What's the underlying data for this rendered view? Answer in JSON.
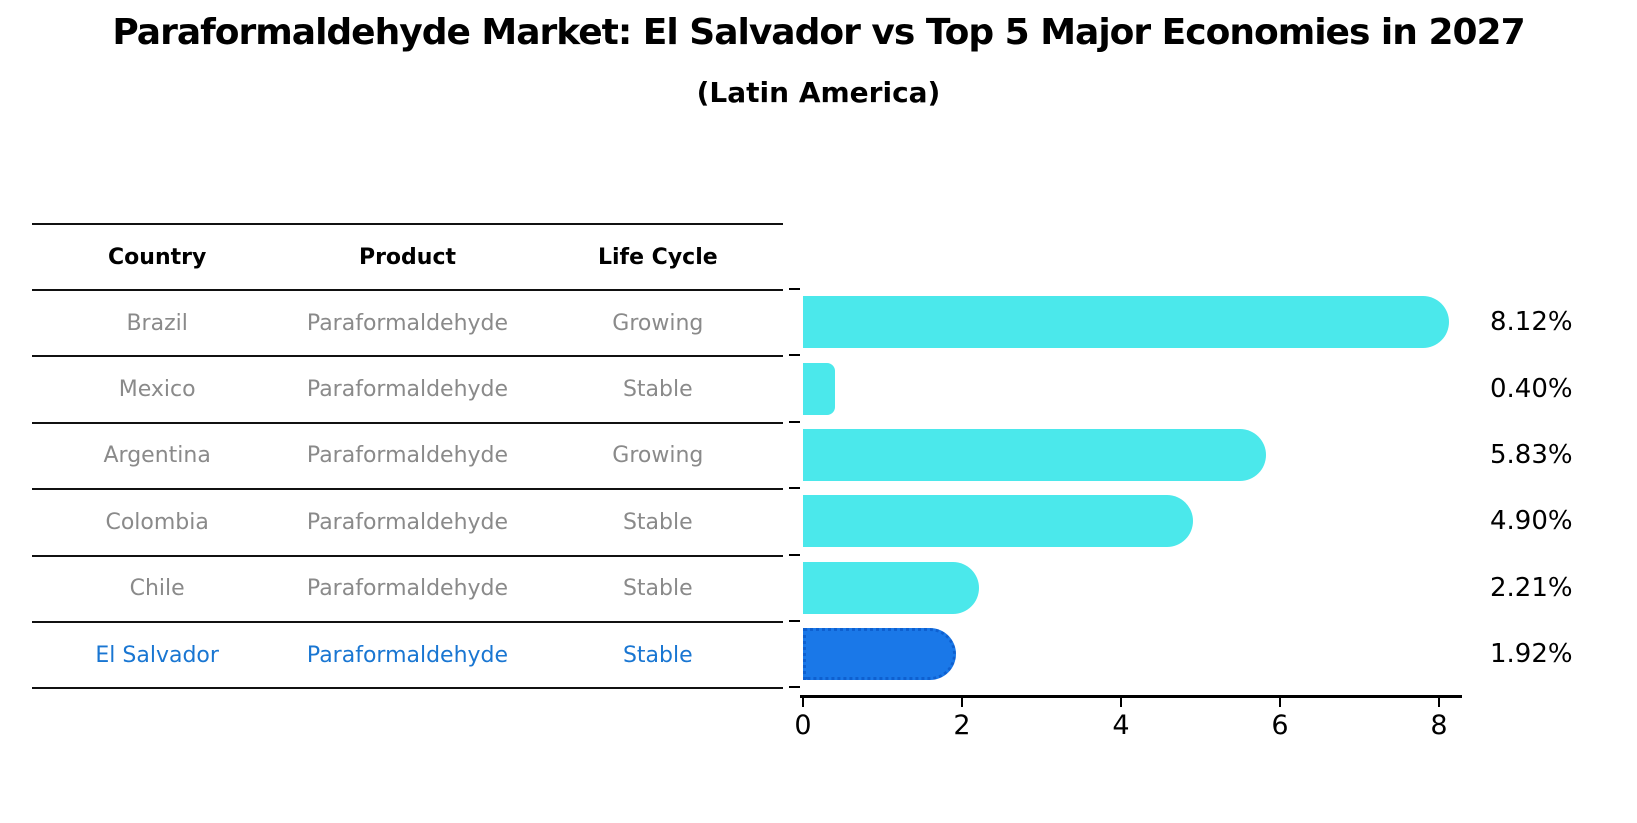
{
  "header": {
    "title": "Paraformaldehyde Market: El Salvador vs Top 5 Major Economies in 2027",
    "subtitle": "(Latin America)"
  },
  "table": {
    "columns": [
      "Country",
      "Product",
      "Life Cycle"
    ],
    "rows": [
      {
        "country": "Brazil",
        "product": "Paraformaldehyde",
        "life_cycle": "Growing",
        "highlight": false
      },
      {
        "country": "Mexico",
        "product": "Paraformaldehyde",
        "life_cycle": "Stable",
        "highlight": false
      },
      {
        "country": "Argentina",
        "product": "Paraformaldehyde",
        "life_cycle": "Growing",
        "highlight": false
      },
      {
        "country": "Colombia",
        "product": "Paraformaldehyde",
        "life_cycle": "Stable",
        "highlight": false
      },
      {
        "country": "Chile",
        "product": "Paraformaldehyde",
        "life_cycle": "Stable",
        "highlight": false
      },
      {
        "country": "El Salvador",
        "product": "Paraformaldehyde",
        "life_cycle": "Stable",
        "highlight": true
      }
    ]
  },
  "chart_data": {
    "type": "bar",
    "orientation": "horizontal",
    "title": "Paraformaldehyde Market: El Salvador vs Top 5 Major Economies in 2027",
    "subtitle": "(Latin America)",
    "categories": [
      "Brazil",
      "Mexico",
      "Argentina",
      "Colombia",
      "Chile",
      "El Salvador"
    ],
    "values": [
      8.12,
      0.4,
      5.83,
      4.9,
      2.21,
      1.92
    ],
    "value_labels": [
      "8.12%",
      "0.40%",
      "5.83%",
      "4.90%",
      "2.21%",
      "1.92%"
    ],
    "xlim": [
      0,
      8.6
    ],
    "xticks": [
      0,
      2,
      4,
      6,
      8
    ],
    "xtick_labels": [
      "0",
      "2",
      "4",
      "6",
      "8"
    ],
    "grid": false,
    "legend": "none",
    "bar_color": "#4be8eb",
    "highlight_index": 5,
    "highlight_color": "#1a78e8",
    "highlight_border_color": "#0e60d0",
    "muted_text_color": "#8a8a8a",
    "highlight_text_color": "#1976d2"
  }
}
